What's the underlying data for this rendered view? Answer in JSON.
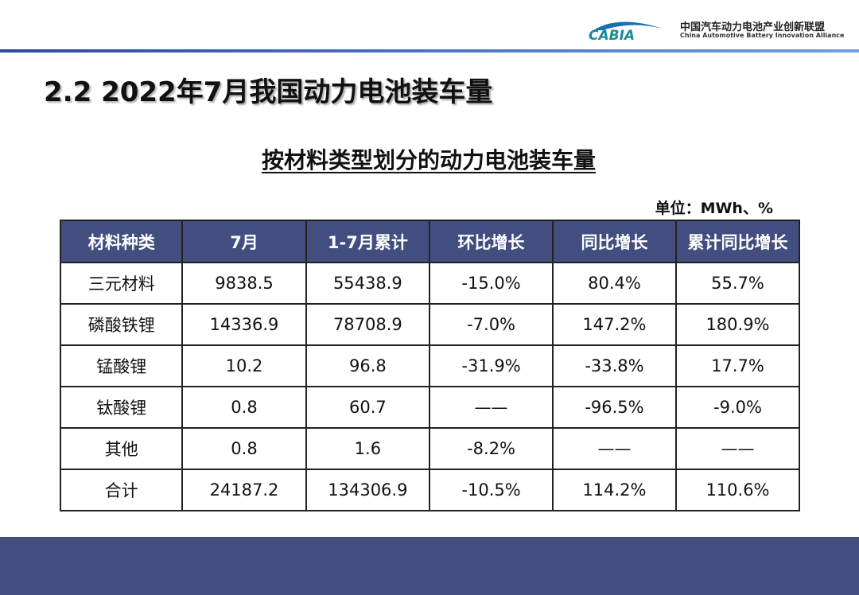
{
  "header": {
    "org_cn": "中国汽车动力电池产业创新联盟",
    "org_en": "China Automotive Battery Innovation Alliance",
    "logo_text": "CABIA"
  },
  "title": "2.2 2022年7月我国动力电池装车量",
  "subtitle": "按材料类型划分的动力电池装车量",
  "unit": "单位：MWh、%",
  "table": {
    "headers": [
      "材料种类",
      "7月",
      "1-7月累计",
      "环比增长",
      "同比增长",
      "累计同比增长"
    ],
    "rows": [
      [
        "三元材料",
        "9838.5",
        "55438.9",
        "-15.0%",
        "80.4%",
        "55.7%"
      ],
      [
        "磷酸铁锂",
        "14336.9",
        "78708.9",
        "-7.0%",
        "147.2%",
        "180.9%"
      ],
      [
        "锰酸锂",
        "10.2",
        "96.8",
        "-31.9%",
        "-33.8%",
        "17.7%"
      ],
      [
        "钛酸锂",
        "0.8",
        "60.7",
        "——",
        "-96.5%",
        "-9.0%"
      ],
      [
        "其他",
        "0.8",
        "1.6",
        "-8.2%",
        "——",
        "——"
      ],
      [
        "合计",
        "24187.2",
        "134306.9",
        "-10.5%",
        "114.2%",
        "110.6%"
      ]
    ]
  },
  "colors": {
    "header_bg": "#424d80",
    "footer_bg": "#424d80"
  }
}
